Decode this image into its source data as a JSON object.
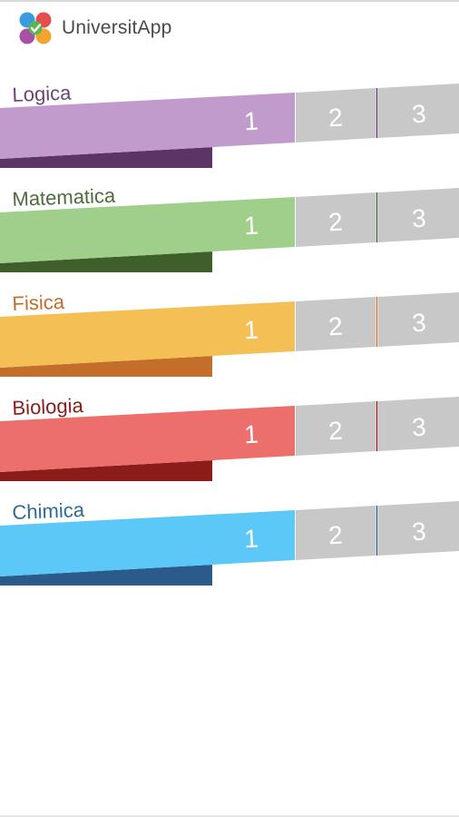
{
  "app": {
    "title": "UniversitApp",
    "logo_icon": "four-petal-logo-with-checkmark-icon",
    "logo_colors": [
      "#3a9be0",
      "#e44e4e",
      "#a94fa6",
      "#f3a42f",
      "#57b84f"
    ]
  },
  "subjects": [
    {
      "name": "Logica",
      "color": "#c29bcd",
      "dark": "#5d3466",
      "label_color": "#6d4475",
      "levels": [
        "1",
        "2",
        "3"
      ]
    },
    {
      "name": "Matematica",
      "color": "#9fcf8a",
      "dark": "#3e5f2a",
      "label_color": "#4f6b3d",
      "levels": [
        "1",
        "2",
        "3"
      ]
    },
    {
      "name": "Fisica",
      "color": "#f4c056",
      "dark": "#c46e2c",
      "label_color": "#c46e2c",
      "levels": [
        "1",
        "2",
        "3"
      ]
    },
    {
      "name": "Biologia",
      "color": "#ec6f6b",
      "dark": "#8c1c17",
      "label_color": "#8c1c17",
      "levels": [
        "1",
        "2",
        "3"
      ]
    },
    {
      "name": "Chimica",
      "color": "#5bc8f7",
      "dark": "#2a5b8a",
      "label_color": "#2e6a96",
      "levels": [
        "1",
        "2",
        "3"
      ]
    }
  ],
  "level_inactive_color": "#c8c8c8"
}
